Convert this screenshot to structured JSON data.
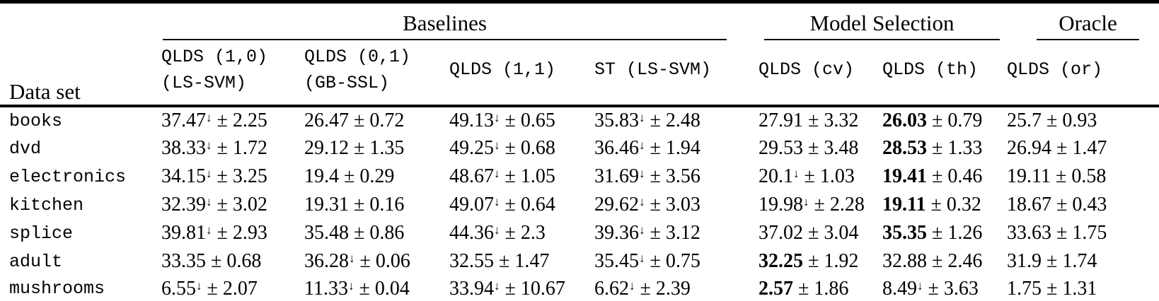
{
  "table": {
    "dataset_header": "Data set",
    "col_groups": [
      {
        "label": "Baselines"
      },
      {
        "label": "Model Selection"
      },
      {
        "label": "Oracle"
      }
    ],
    "columns": [
      {
        "line1": "QLDS (1,0)",
        "line2": "(LS-SVM)"
      },
      {
        "line1": "QLDS (0,1)",
        "line2": "(GB-SSL)"
      },
      {
        "line1": "QLDS (1,1)",
        "line2": ""
      },
      {
        "line1": "ST (LS-SVM)",
        "line2": ""
      },
      {
        "line1": "QLDS (cv)",
        "line2": ""
      },
      {
        "line1": "QLDS (th)",
        "line2": ""
      },
      {
        "line1": "QLDS (or)",
        "line2": ""
      }
    ],
    "symbols": {
      "plus_minus": "±",
      "down_arrow": "↓"
    },
    "rows": [
      {
        "dataset": "books",
        "cells": [
          {
            "mean": "37.47",
            "arrow": true,
            "std": "2.25",
            "bold": false
          },
          {
            "mean": "26.47",
            "arrow": false,
            "std": "0.72",
            "bold": false
          },
          {
            "mean": "49.13",
            "arrow": true,
            "std": "0.65",
            "bold": false
          },
          {
            "mean": "35.83",
            "arrow": true,
            "std": "2.48",
            "bold": false
          },
          {
            "mean": "27.91",
            "arrow": false,
            "std": "3.32",
            "bold": false
          },
          {
            "mean": "26.03",
            "arrow": false,
            "std": "0.79",
            "bold": true
          },
          {
            "mean": "25.7",
            "arrow": false,
            "std": "0.93",
            "bold": false
          }
        ]
      },
      {
        "dataset": "dvd",
        "cells": [
          {
            "mean": "38.33",
            "arrow": true,
            "std": "1.72",
            "bold": false
          },
          {
            "mean": "29.12",
            "arrow": false,
            "std": "1.35",
            "bold": false
          },
          {
            "mean": "49.25",
            "arrow": true,
            "std": "0.68",
            "bold": false
          },
          {
            "mean": "36.46",
            "arrow": true,
            "std": "1.94",
            "bold": false
          },
          {
            "mean": "29.53",
            "arrow": false,
            "std": "3.48",
            "bold": false
          },
          {
            "mean": "28.53",
            "arrow": false,
            "std": "1.33",
            "bold": true
          },
          {
            "mean": "26.94",
            "arrow": false,
            "std": "1.47",
            "bold": false
          }
        ]
      },
      {
        "dataset": "electronics",
        "cells": [
          {
            "mean": "34.15",
            "arrow": true,
            "std": "3.25",
            "bold": false
          },
          {
            "mean": "19.4",
            "arrow": false,
            "std": "0.29",
            "bold": false
          },
          {
            "mean": "48.67",
            "arrow": true,
            "std": "1.05",
            "bold": false
          },
          {
            "mean": "31.69",
            "arrow": true,
            "std": "3.56",
            "bold": false
          },
          {
            "mean": "20.1",
            "arrow": true,
            "std": "1.03",
            "bold": false
          },
          {
            "mean": "19.41",
            "arrow": false,
            "std": "0.46",
            "bold": true
          },
          {
            "mean": "19.11",
            "arrow": false,
            "std": "0.58",
            "bold": false
          }
        ]
      },
      {
        "dataset": "kitchen",
        "cells": [
          {
            "mean": "32.39",
            "arrow": true,
            "std": "3.02",
            "bold": false
          },
          {
            "mean": "19.31",
            "arrow": false,
            "std": "0.16",
            "bold": false
          },
          {
            "mean": "49.07",
            "arrow": true,
            "std": "0.64",
            "bold": false
          },
          {
            "mean": "29.62",
            "arrow": true,
            "std": "3.03",
            "bold": false
          },
          {
            "mean": "19.98",
            "arrow": true,
            "std": "2.28",
            "bold": false
          },
          {
            "mean": "19.11",
            "arrow": false,
            "std": "0.32",
            "bold": true
          },
          {
            "mean": "18.67",
            "arrow": false,
            "std": "0.43",
            "bold": false
          }
        ]
      },
      {
        "dataset": "splice",
        "cells": [
          {
            "mean": "39.81",
            "arrow": true,
            "std": "2.93",
            "bold": false
          },
          {
            "mean": "35.48",
            "arrow": false,
            "std": "0.86",
            "bold": false
          },
          {
            "mean": "44.36",
            "arrow": true,
            "std": "2.3",
            "bold": false
          },
          {
            "mean": "39.36",
            "arrow": true,
            "std": "3.12",
            "bold": false
          },
          {
            "mean": "37.02",
            "arrow": false,
            "std": "3.04",
            "bold": false
          },
          {
            "mean": "35.35",
            "arrow": false,
            "std": "1.26",
            "bold": true
          },
          {
            "mean": "33.63",
            "arrow": false,
            "std": "1.75",
            "bold": false
          }
        ]
      },
      {
        "dataset": "adult",
        "cells": [
          {
            "mean": "33.35",
            "arrow": false,
            "std": "0.68",
            "bold": false
          },
          {
            "mean": "36.28",
            "arrow": true,
            "std": "0.06",
            "bold": false
          },
          {
            "mean": "32.55",
            "arrow": false,
            "std": "1.47",
            "bold": false
          },
          {
            "mean": "35.45",
            "arrow": true,
            "std": "0.75",
            "bold": false
          },
          {
            "mean": "32.25",
            "arrow": false,
            "std": "1.92",
            "bold": true
          },
          {
            "mean": "32.88",
            "arrow": false,
            "std": "2.46",
            "bold": false
          },
          {
            "mean": "31.9",
            "arrow": false,
            "std": "1.74",
            "bold": false
          }
        ]
      },
      {
        "dataset": "mushrooms",
        "cells": [
          {
            "mean": "6.55",
            "arrow": true,
            "std": "2.07",
            "bold": false
          },
          {
            "mean": "11.33",
            "arrow": true,
            "std": "0.04",
            "bold": false
          },
          {
            "mean": "33.94",
            "arrow": true,
            "std": "10.67",
            "bold": false
          },
          {
            "mean": "6.62",
            "arrow": true,
            "std": "2.39",
            "bold": false
          },
          {
            "mean": "2.57",
            "arrow": false,
            "std": "1.86",
            "bold": true
          },
          {
            "mean": "8.49",
            "arrow": true,
            "std": "3.63",
            "bold": false
          },
          {
            "mean": "1.75",
            "arrow": false,
            "std": "1.31",
            "bold": false
          }
        ]
      }
    ]
  }
}
